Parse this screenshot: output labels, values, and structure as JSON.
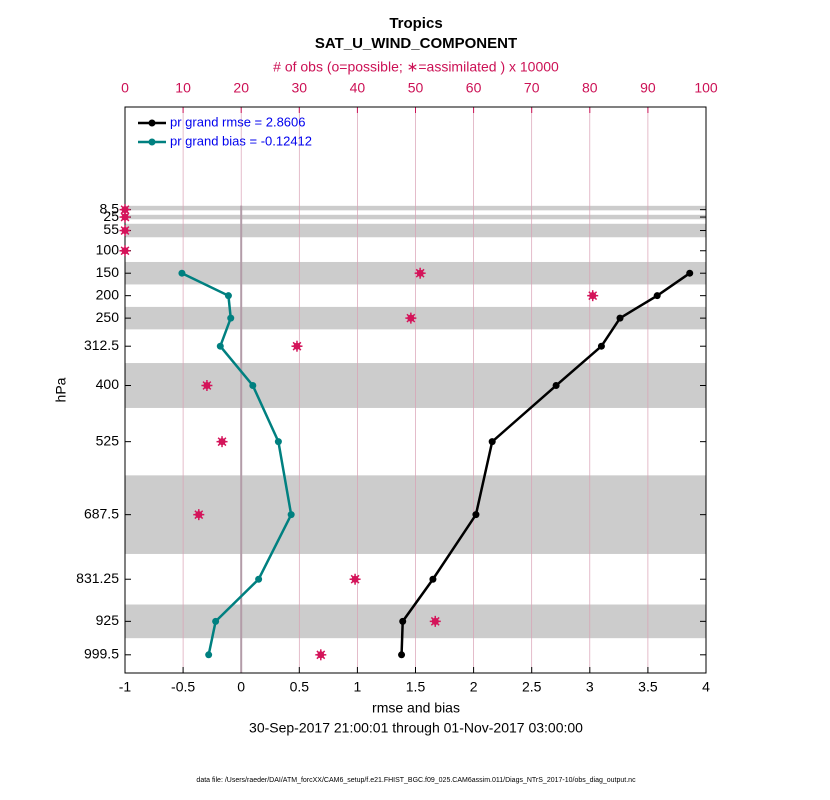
{
  "chart_data": {
    "type": "profile",
    "title": "Tropics",
    "subtitle": "SAT_U_WIND_COMPONENT",
    "top_axis_label": "# of obs (o=possible; ∗=assimilated ) x 10000",
    "y_label": "hPa",
    "x_label": "rmse and bias",
    "date_range": "30-Sep-2017 21:00:01 through 01-Nov-2017 03:00:00",
    "footnote": "data file: /Users/raeder/DAI/ATM_forcXX/CAM6_setup/f.e21.FHIST_BGC.f09_025.CAM6assim.011/Diags_NTrS_2017-10/obs_diag_output.nc",
    "y": [
      8.5,
      25,
      55,
      100,
      150,
      200,
      250,
      312.5,
      400,
      525,
      687.5,
      831.25,
      925,
      999.5
    ],
    "ylim": [
      1040,
      -220
    ],
    "yticks": [
      8.5,
      25,
      55,
      100,
      150,
      200,
      250,
      312.5,
      400,
      525,
      687.5,
      831.25,
      925,
      999.5
    ],
    "xlim": [
      -1,
      4
    ],
    "xticks": [
      -1,
      -0.5,
      0,
      0.5,
      1,
      1.5,
      2,
      2.5,
      3,
      3.5,
      4
    ],
    "x2lim": [
      0,
      100
    ],
    "x2ticks": [
      0,
      10,
      20,
      30,
      40,
      50,
      60,
      70,
      80,
      90,
      100
    ],
    "grid": true,
    "bands": [
      [
        0,
        10
      ],
      [
        20,
        30
      ],
      [
        40,
        70
      ],
      [
        125,
        175
      ],
      [
        225,
        275
      ],
      [
        350,
        450
      ],
      [
        600,
        775
      ],
      [
        887.5,
        962.5
      ]
    ],
    "series": [
      {
        "name": "pr grand rmse = 2.8606",
        "color": "#000000",
        "values": [
          null,
          null,
          null,
          null,
          3.86,
          3.58,
          3.26,
          3.1,
          2.71,
          2.16,
          2.02,
          1.65,
          1.39,
          1.38
        ]
      },
      {
        "name": "pr grand bias = -0.12412",
        "color": "#008080",
        "values": [
          null,
          null,
          null,
          null,
          -0.51,
          -0.11,
          -0.09,
          -0.18,
          0.1,
          0.32,
          0.43,
          0.15,
          -0.22,
          -0.28
        ]
      }
    ],
    "obs": {
      "color": "#d4145a",
      "axis": "x2",
      "values": [
        0,
        0,
        0,
        0,
        50.8,
        80.5,
        49.2,
        29.6,
        14.1,
        16.7,
        12.7,
        39.6,
        53.4,
        33.7
      ]
    }
  }
}
